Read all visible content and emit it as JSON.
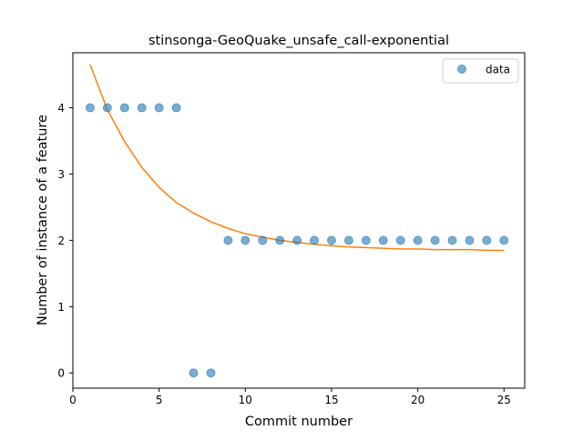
{
  "chart_data": {
    "type": "scatter",
    "title": "stinsonga-GeoQuake_unsafe_call-exponential",
    "xlabel": "Commit number",
    "ylabel": "Number of instance of a feature",
    "xlim": [
      0,
      26.2
    ],
    "ylim": [
      -0.23,
      4.83
    ],
    "x_ticks": [
      0,
      5,
      10,
      15,
      20,
      25
    ],
    "y_ticks": [
      0,
      1,
      2,
      3,
      4
    ],
    "grid": false,
    "legend_position": "top-right",
    "series": [
      {
        "name": "data",
        "kind": "scatter",
        "color": "#1f77b4",
        "x": [
          1,
          2,
          3,
          4,
          5,
          6,
          7,
          8,
          9,
          10,
          11,
          12,
          13,
          14,
          15,
          16,
          17,
          18,
          19,
          20,
          21,
          22,
          23,
          24,
          25
        ],
        "y": [
          4,
          4,
          4,
          4,
          4,
          4,
          0,
          0,
          2,
          2,
          2,
          2,
          2,
          2,
          2,
          2,
          2,
          2,
          2,
          2,
          2,
          2,
          2,
          2,
          2
        ]
      },
      {
        "kind": "line",
        "color": "#ff7f0e",
        "x": [
          1,
          2,
          3,
          4,
          5,
          6,
          7,
          8,
          9,
          10,
          11,
          12,
          13,
          14,
          15,
          16,
          17,
          18,
          19,
          20,
          21,
          22,
          23,
          24,
          25
        ],
        "y": [
          4.65,
          3.97,
          3.49,
          3.1,
          2.8,
          2.57,
          2.41,
          2.28,
          2.18,
          2.1,
          2.05,
          2.0,
          1.97,
          1.94,
          1.92,
          1.9,
          1.89,
          1.88,
          1.87,
          1.87,
          1.86,
          1.86,
          1.86,
          1.85,
          1.85
        ]
      }
    ]
  }
}
